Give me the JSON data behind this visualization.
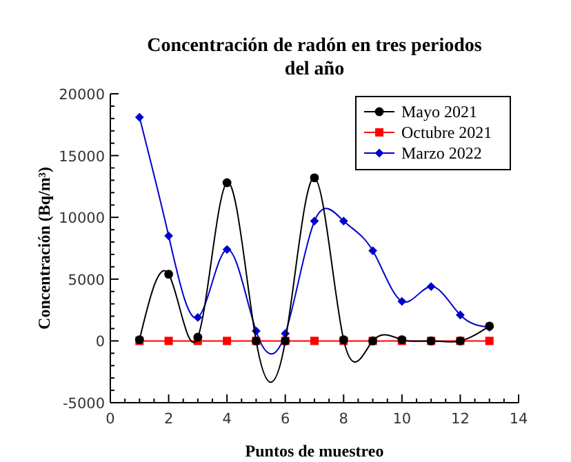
{
  "chart_data": {
    "type": "line",
    "title": "Concentración de radón en tres periodos del año",
    "xlabel": "Puntos de muestreo",
    "ylabel": "Concentración (Bq/m³)",
    "x": [
      1,
      2,
      3,
      4,
      5,
      6,
      7,
      8,
      9,
      10,
      11,
      12,
      13
    ],
    "series": [
      {
        "name": "Mayo 2021",
        "color": "#000000",
        "marker": "circle",
        "values": [
          100,
          5400,
          300,
          12800,
          0,
          0,
          13200,
          100,
          0,
          100,
          0,
          0,
          1200
        ]
      },
      {
        "name": "Octubre 2021",
        "color": "#ff0000",
        "marker": "square",
        "values": [
          0,
          0,
          0,
          0,
          0,
          0,
          0,
          0,
          0,
          0,
          0,
          0,
          0
        ]
      },
      {
        "name": "Marzo 2022",
        "color": "#0000cc",
        "marker": "diamond",
        "values": [
          18100,
          8500,
          1900,
          7400,
          800,
          600,
          9700,
          9700,
          7300,
          3200,
          4400,
          2100,
          1100
        ]
      }
    ],
    "xlim": [
      0,
      14
    ],
    "xticks": [
      0,
      2,
      4,
      6,
      8,
      10,
      12,
      14
    ],
    "ylim": [
      -5000,
      20000
    ],
    "yticks": [
      -5000,
      0,
      5000,
      10000,
      15000,
      20000
    ],
    "grid": false,
    "legend": "top right",
    "line_style": "solid"
  }
}
